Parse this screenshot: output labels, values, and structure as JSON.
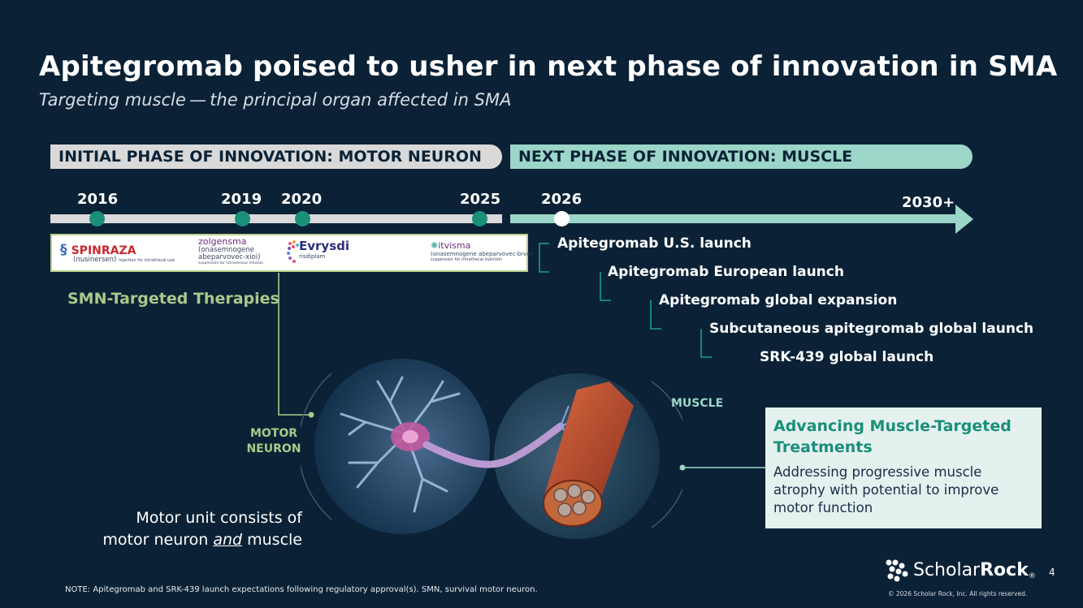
{
  "title": "Apitegromab poised to usher in next phase of innovation in SMA",
  "subtitle": "Targeting muscle — the principal organ affected in SMA",
  "phases": {
    "initial": "INITIAL PHASE OF INNOVATION: MOTOR NEURON",
    "next": "NEXT PHASE OF INNOVATION: MUSCLE"
  },
  "years": {
    "y2016": "2016",
    "y2019": "2019",
    "y2020": "2020",
    "y2025": "2025",
    "y2026": "2026",
    "y2030": "2030+"
  },
  "logos": {
    "spinraza_name": "SPINRAZA",
    "spinraza_generic": "(nusinersen)",
    "spinraza_sub": "Injection for intrathecal use",
    "zolgensma_name": "zolgensma",
    "zolgensma_generic": "(onasemnogene",
    "zolgensma_generic2": "abeparvovec-xioi)",
    "zolgensma_sub": "suspension for intravenous infusion",
    "evrysdi_name": "Evrysdi",
    "evrysdi_generic": "risdiplam",
    "itvisma_name": "itvisma",
    "itvisma_generic": "(onasemnogene abeparvovec-brve)",
    "itvisma_sub": "suspension for intrathecal injection"
  },
  "smn_label": "SMN-Targeted Therapies",
  "milestones": [
    "Apitegromab U.S. launch",
    "Apitegromab European launch",
    "Apitegromab global expansion",
    "Subcutaneous apitegromab global launch",
    "SRK-439 global launch"
  ],
  "labels": {
    "motor_neuron_line1": "MOTOR",
    "motor_neuron_line2": "NEURON",
    "muscle": "MUSCLE"
  },
  "motor_caption": {
    "line1": "Motor unit consists of",
    "pre": "motor neuron ",
    "emph": "and",
    "post": " muscle"
  },
  "callout": {
    "title": "Advancing Muscle-Targeted Treatments",
    "body": "Addressing progressive muscle atrophy with potential to improve motor function"
  },
  "note": "NOTE: Apitegromab and SRK-439 launch expectations following regulatory approval(s). SMN, survival motor neuron.",
  "brand": {
    "part1": "Scholar",
    "part2": "Rock",
    "reg": "®"
  },
  "copyright": "© 2026 Scholar Rock, Inc. All rights reserved.",
  "page_number": "4",
  "colors": {
    "background": "#0b2236",
    "teal_accent": "#1a8f7a",
    "mint": "#9cd6c8",
    "grey_bar": "#d9d9d9",
    "olive_green": "#a8c98a"
  }
}
